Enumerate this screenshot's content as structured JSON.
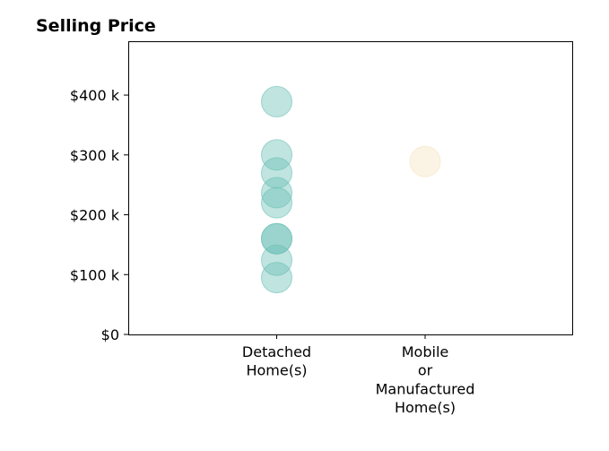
{
  "chart_data": {
    "type": "scatter",
    "title": "Selling Price",
    "xlabel": "",
    "ylabel": "",
    "categories": [
      [
        "Detached",
        "Home(s)"
      ],
      [
        "Mobile",
        "or",
        "Manufactured",
        "Home(s)"
      ]
    ],
    "y_ticks": [
      {
        "value": 0,
        "label": "$0"
      },
      {
        "value": 100000,
        "label": "$100 k"
      },
      {
        "value": 200000,
        "label": "$200 k"
      },
      {
        "value": 300000,
        "label": "$300 k"
      },
      {
        "value": 400000,
        "label": "$400 k"
      }
    ],
    "ylim": [
      0,
      490000
    ],
    "grid": false,
    "series": [
      {
        "category_index": 0,
        "color": "#6ABFB4",
        "values": [
          389000,
          300000,
          270000,
          237000,
          220000,
          160000,
          160000,
          124000,
          95000
        ]
      },
      {
        "category_index": 1,
        "color": "#F5E3BF",
        "values": [
          289000
        ]
      }
    ]
  }
}
